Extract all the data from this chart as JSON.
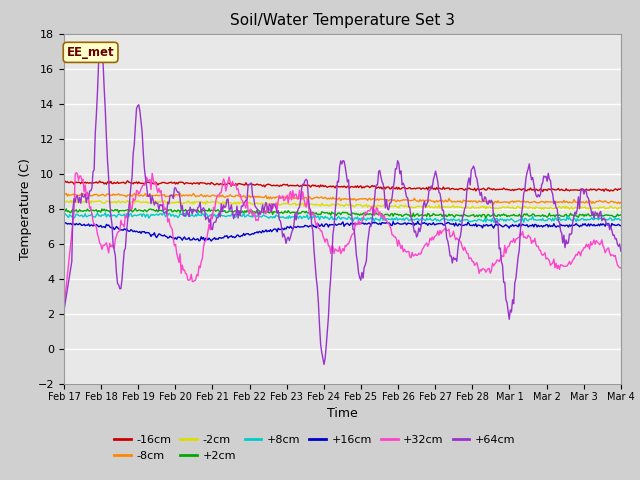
{
  "title": "Soil/Water Temperature Set 3",
  "xlabel": "Time",
  "ylabel": "Temperature (C)",
  "ylim": [
    -2,
    18
  ],
  "yticks": [
    -2,
    0,
    2,
    4,
    6,
    8,
    10,
    12,
    14,
    16,
    18
  ],
  "fig_bg_color": "#d0d0d0",
  "plot_bg_color": "#e8e8e8",
  "annotation_text": "EE_met",
  "annotation_box_color": "#ffffcc",
  "annotation_border_color": "#996600",
  "series": [
    {
      "label": "-16cm",
      "color": "#cc0000"
    },
    {
      "label": "-8cm",
      "color": "#ff8800"
    },
    {
      "label": "-2cm",
      "color": "#dddd00"
    },
    {
      "label": "+2cm",
      "color": "#00aa00"
    },
    {
      "label": "+8cm",
      "color": "#00cccc"
    },
    {
      "label": "+16cm",
      "color": "#0000cc"
    },
    {
      "label": "+32cm",
      "color": "#ff44cc"
    },
    {
      "label": "+64cm",
      "color": "#9933cc"
    }
  ],
  "x_tick_labels": [
    "Feb 17",
    "Feb 18",
    "Feb 19",
    "Feb 20",
    "Feb 21",
    "Feb 22",
    "Feb 23",
    "Feb 24",
    "Feb 25",
    "Feb 26",
    "Feb 27",
    "Feb 28",
    "Mar 1",
    "Mar 2",
    "Mar 3",
    "Mar 4"
  ],
  "figsize": [
    6.4,
    4.8
  ],
  "dpi": 100
}
